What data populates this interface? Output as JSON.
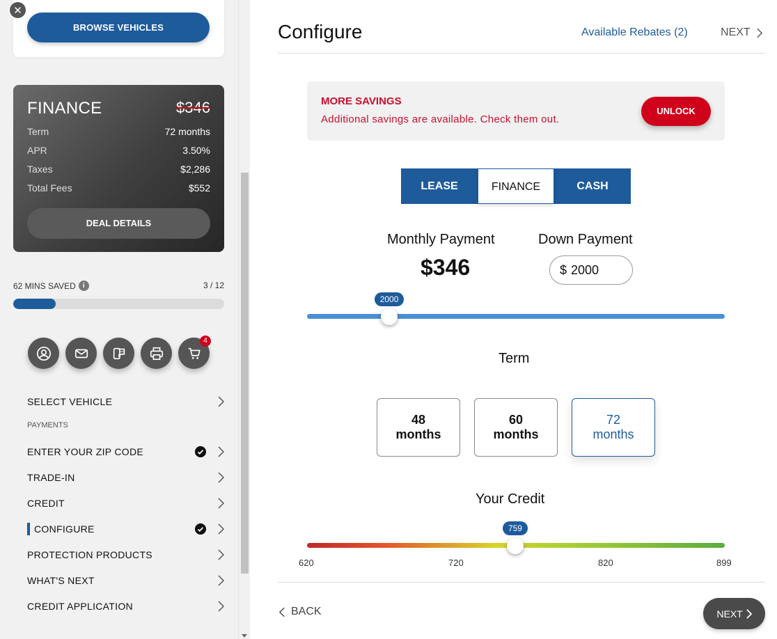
{
  "sidebar": {
    "browse_label": "BROWSE VEHICLES",
    "close_glyph": "✕",
    "finance_card": {
      "title": "FINANCE",
      "price": "$346",
      "rows": [
        {
          "label": "Term",
          "value": "72 months"
        },
        {
          "label": "APR",
          "value": "3.50%"
        },
        {
          "label": "Taxes",
          "value": "$2,286"
        },
        {
          "label": "Total Fees",
          "value": "$552"
        }
      ],
      "deal_details_label": "DEAL DETAILS"
    },
    "mins_saved": "62 MINS SAVED",
    "info_glyph": "i",
    "step_count": "3 / 12",
    "progress_fraction": 0.2,
    "actions": [
      {
        "icon": "user-circle-icon"
      },
      {
        "icon": "mail-icon"
      },
      {
        "icon": "chat-phone-icon"
      },
      {
        "icon": "printer-icon"
      },
      {
        "icon": "cart-icon",
        "badge": "4"
      }
    ],
    "nav": {
      "select_vehicle": "SELECT VEHICLE",
      "section_payments": "PAYMENTS",
      "zip": "ENTER YOUR ZIP CODE",
      "trade_in": "TRADE-IN",
      "credit": "CREDIT",
      "configure": "CONFIGURE",
      "protection": "PROTECTION PRODUCTS",
      "whats_next": "WHAT'S NEXT",
      "credit_app": "CREDIT APPLICATION"
    }
  },
  "header": {
    "title": "Configure",
    "rebates_link": "Available Rebates (2)",
    "next_label": "NEXT"
  },
  "savings": {
    "title": "MORE SAVINGS",
    "text": "Additional savings are available. Check them out.",
    "unlock_label": "UNLOCK"
  },
  "tabs": [
    "LEASE",
    "FINANCE",
    "CASH"
  ],
  "active_tab": "FINANCE",
  "payment": {
    "monthly_label": "Monthly Payment",
    "monthly_value": "$346",
    "down_label": "Down Payment",
    "currency_symbol": "$",
    "down_value": "2000"
  },
  "down_slider": {
    "value": 2000,
    "display": "2000",
    "position_fraction": 0.197
  },
  "term": {
    "label": "Term",
    "options": [
      {
        "line1": "48",
        "line2": "months"
      },
      {
        "line1": "60",
        "line2": "months"
      },
      {
        "line1": "72",
        "line2": "months"
      }
    ],
    "selected": "72"
  },
  "credit": {
    "label": "Your Credit",
    "value": 759,
    "display": "759",
    "min": 620,
    "max": 899,
    "ticks": [
      "620",
      "720",
      "820",
      "899"
    ]
  },
  "footer": {
    "back_label": "BACK",
    "next_label": "NEXT"
  },
  "colors": {
    "brand_blue": "#1e5b9b",
    "alert_red": "#d0021b",
    "dark_gray": "#4a4a4a"
  }
}
